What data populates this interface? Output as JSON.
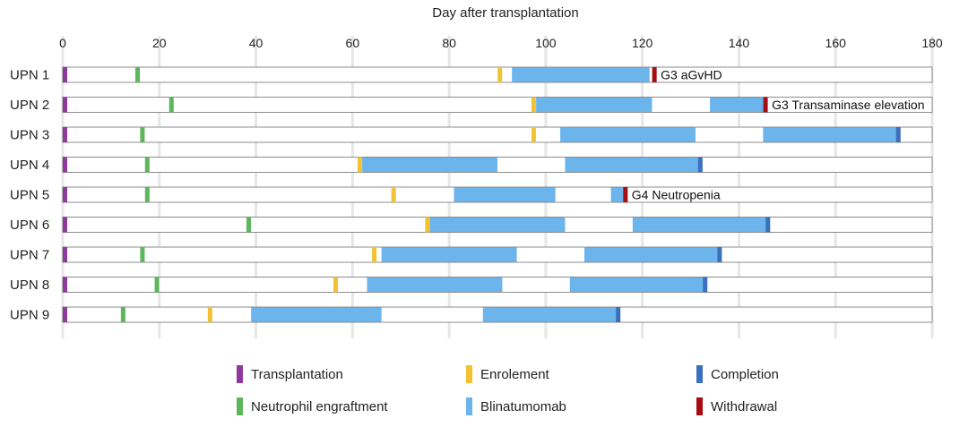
{
  "chart_data": {
    "type": "gantt",
    "title": "Day after transplantation",
    "x_axis": {
      "min": 0,
      "max": 180,
      "ticks": [
        0,
        20,
        40,
        60,
        80,
        100,
        120,
        140,
        160,
        180
      ],
      "position": "top"
    },
    "grid": true,
    "colors": {
      "Transplantation": "#8e3a9c",
      "Neutrophil engraftment": "#5cb65a",
      "Enrolement": "#f2c232",
      "Blinatumomab": "#6cb4ec",
      "Completion": "#3c6fbd",
      "Withdrawal": "#a50d12",
      "row_border": "#8c8c8c"
    },
    "rows": [
      {
        "label": "UPN 1",
        "transplantation": 0,
        "engraftment": 15.5,
        "enrolment": 90.5,
        "blinatumomab": [
          [
            93,
            121.5
          ]
        ],
        "end_event": {
          "type": "Withdrawal",
          "day": 122.5
        },
        "annotation": "G3 aGvHD"
      },
      {
        "label": "UPN 2",
        "transplantation": 0,
        "engraftment": 22.5,
        "enrolment": 97.5,
        "blinatumomab": [
          [
            98,
            122
          ],
          [
            134,
            145.5
          ]
        ],
        "end_event": {
          "type": "Withdrawal",
          "day": 145.5
        },
        "annotation": "G3 Transaminase elevation"
      },
      {
        "label": "UPN 3",
        "transplantation": 0,
        "engraftment": 16.5,
        "enrolment": 97.5,
        "blinatumomab": [
          [
            103,
            131
          ],
          [
            145,
            173
          ]
        ],
        "end_event": {
          "type": "Completion",
          "day": 173
        },
        "annotation": ""
      },
      {
        "label": "UPN 4",
        "transplantation": 0,
        "engraftment": 17.5,
        "enrolment": 61.5,
        "blinatumomab": [
          [
            62,
            90
          ],
          [
            104,
            132
          ]
        ],
        "end_event": {
          "type": "Completion",
          "day": 132
        },
        "annotation": ""
      },
      {
        "label": "UPN 5",
        "transplantation": 0,
        "engraftment": 17.5,
        "enrolment": 68.5,
        "blinatumomab": [
          [
            81,
            102
          ],
          [
            113.5,
            116.5
          ]
        ],
        "end_event": {
          "type": "Withdrawal",
          "day": 116.5
        },
        "annotation": "G4 Neutropenia"
      },
      {
        "label": "UPN 6",
        "transplantation": 0,
        "engraftment": 38.5,
        "enrolment": 75.5,
        "blinatumomab": [
          [
            76,
            104
          ],
          [
            118,
            146
          ]
        ],
        "end_event": {
          "type": "Completion",
          "day": 146
        },
        "annotation": ""
      },
      {
        "label": "UPN 7",
        "transplantation": 0,
        "engraftment": 16.5,
        "enrolment": 64.5,
        "blinatumomab": [
          [
            66,
            94
          ],
          [
            108,
            136
          ]
        ],
        "end_event": {
          "type": "Completion",
          "day": 136
        },
        "annotation": ""
      },
      {
        "label": "UPN 8",
        "transplantation": 0,
        "engraftment": 19.5,
        "enrolment": 56.5,
        "blinatumomab": [
          [
            63,
            91
          ],
          [
            105,
            133
          ]
        ],
        "end_event": {
          "type": "Completion",
          "day": 133
        },
        "annotation": ""
      },
      {
        "label": "UPN 9",
        "transplantation": 0,
        "engraftment": 12.5,
        "enrolment": 30.5,
        "blinatumomab": [
          [
            39,
            66
          ],
          [
            87,
            115
          ]
        ],
        "end_event": {
          "type": "Completion",
          "day": 115
        },
        "annotation": ""
      }
    ],
    "legend": {
      "placement": "bottom",
      "entries": [
        {
          "label": "Transplantation",
          "color_key": "Transplantation"
        },
        {
          "label": "Enrolement",
          "color_key": "Enrolement"
        },
        {
          "label": "Completion",
          "color_key": "Completion"
        },
        {
          "label": "Neutrophil engraftment",
          "color_key": "Neutrophil engraftment"
        },
        {
          "label": "Blinatumomab",
          "color_key": "Blinatumomab"
        },
        {
          "label": "Withdrawal",
          "color_key": "Withdrawal"
        }
      ]
    }
  }
}
